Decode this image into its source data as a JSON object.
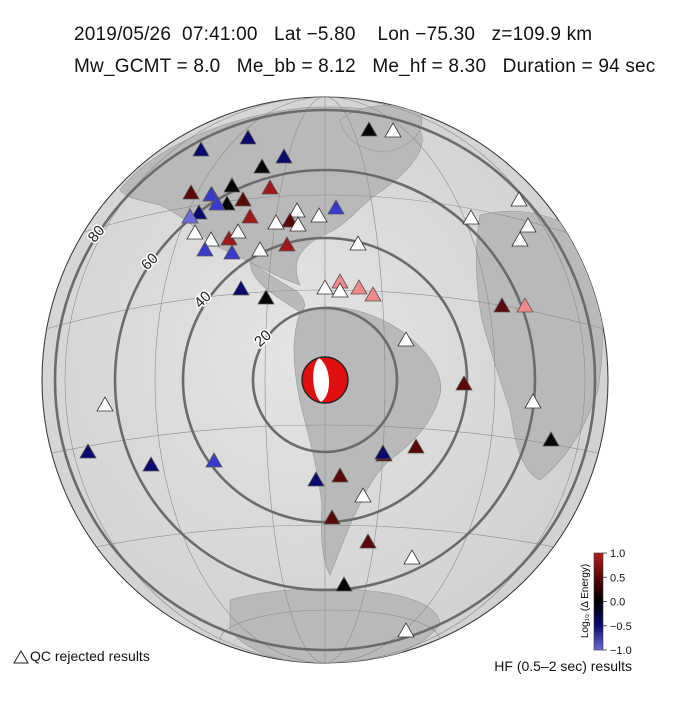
{
  "header": {
    "line1": "2019/05/26  07:41:00   Lat −5.80    Lon −75.30   z=109.9 km",
    "line2": "Mw_GCMT = 8.0   Me_bb = 8.12   Me_hf = 8.30   Duration = 94 sec"
  },
  "map": {
    "rings": [
      {
        "deg": 20,
        "label": "20"
      },
      {
        "deg": 40,
        "label": "40"
      },
      {
        "deg": 60,
        "label": "60"
      },
      {
        "deg": 80,
        "label": "80"
      }
    ],
    "epicenter_symbol": "focal-mechanism-beachball"
  },
  "colors": {
    "map_bg": "#d9d9d9",
    "ring": "#6b6b6b",
    "beachball_fill": "#e01010",
    "stations": {
      "dark_blue": "#0a0a6e",
      "mid_blue": "#3a3acd",
      "light_blue": "#6c6cd8",
      "black": "#050505",
      "dark_red": "#5a0808",
      "red": "#a01818",
      "pink": "#f08a8a",
      "rejected": "#ffffff"
    }
  },
  "stations": [
    {
      "c": "dark_blue"
    },
    {
      "c": "black"
    },
    {
      "c": "rejected"
    },
    {
      "c": "dark_blue"
    },
    {
      "c": "dark_blue"
    },
    {
      "c": "black"
    },
    {
      "c": "black"
    },
    {
      "c": "red"
    },
    {
      "c": "dark_red"
    },
    {
      "c": "red"
    },
    {
      "c": "mid_blue"
    },
    {
      "c": "black"
    },
    {
      "c": "dark_blue"
    },
    {
      "c": "light_blue"
    },
    {
      "c": "mid_blue"
    },
    {
      "c": "red"
    },
    {
      "c": "dark_red"
    },
    {
      "c": "rejected"
    },
    {
      "c": "rejected"
    },
    {
      "c": "mid_blue"
    },
    {
      "c": "rejected"
    },
    {
      "c": "rejected"
    },
    {
      "c": "rejected"
    },
    {
      "c": "rejected"
    },
    {
      "c": "red"
    },
    {
      "c": "dark_red"
    },
    {
      "c": "rejected"
    },
    {
      "c": "red"
    },
    {
      "c": "mid_blue"
    },
    {
      "c": "rejected"
    },
    {
      "c": "rejected"
    },
    {
      "c": "mid_blue"
    },
    {
      "c": "dark_blue"
    },
    {
      "c": "black"
    },
    {
      "c": "rejected"
    },
    {
      "c": "pink"
    },
    {
      "c": "pink"
    },
    {
      "c": "pink"
    },
    {
      "c": "rejected"
    },
    {
      "c": "rejected"
    },
    {
      "c": "dark_red"
    },
    {
      "c": "pink"
    },
    {
      "c": "rejected"
    },
    {
      "c": "rejected"
    },
    {
      "c": "dark_red"
    },
    {
      "c": "rejected"
    },
    {
      "c": "black"
    },
    {
      "c": "rejected"
    },
    {
      "c": "dark_blue"
    },
    {
      "c": "dark_blue"
    },
    {
      "c": "mid_blue"
    },
    {
      "c": "dark_blue"
    },
    {
      "c": "dark_red"
    },
    {
      "c": "dark_blue"
    },
    {
      "c": "dark_red"
    },
    {
      "c": "rejected"
    },
    {
      "c": "dark_red"
    },
    {
      "c": "dark_red"
    },
    {
      "c": "dark_red"
    },
    {
      "c": "rejected"
    },
    {
      "c": "black"
    },
    {
      "c": "rejected"
    },
    {
      "c": "rejected"
    },
    {
      "c": "rejected"
    }
  ],
  "colorbar": {
    "title": "Log₁₀ (Δ Energy)",
    "ticks": [
      "1.0",
      "0.5",
      "0.0",
      "−0.5",
      "−1.0"
    ],
    "colors": [
      "#b51c1c",
      "#5a0808",
      "#000000",
      "#0a0a6e",
      "#6c6cd8"
    ]
  },
  "legend": {
    "qc_label": "QC rejected results",
    "hf_label": "HF (0.5–2 sec) results"
  }
}
